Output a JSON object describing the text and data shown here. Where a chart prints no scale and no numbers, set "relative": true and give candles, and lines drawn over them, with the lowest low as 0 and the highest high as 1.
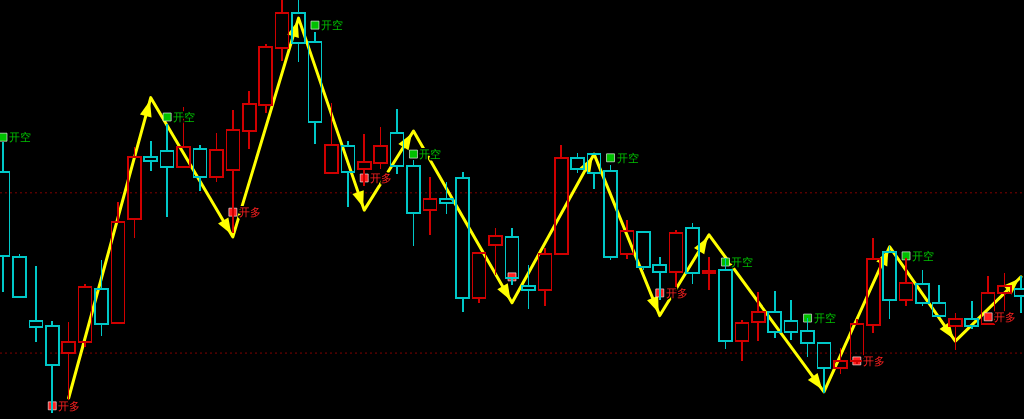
{
  "chart_data": {
    "type": "candlestick",
    "relative": true,
    "categories": [
      null,
      null,
      null,
      null,
      null,
      null,
      null,
      null,
      null,
      null,
      null,
      null,
      null,
      null,
      null,
      null,
      null,
      null,
      null,
      null,
      null,
      null,
      null,
      null,
      null,
      null,
      null,
      null,
      null,
      null,
      null,
      null,
      null,
      null,
      null,
      null,
      null,
      null,
      null,
      null,
      null,
      null,
      null,
      null,
      null,
      null,
      null,
      null,
      null,
      null,
      null,
      null,
      null,
      null,
      null,
      null,
      null,
      null,
      null,
      null,
      null,
      null,
      null
    ],
    "ohlc": [
      [
        0.583,
        0.653,
        0.294,
        0.379
      ],
      [
        0.376,
        0.381,
        0.279,
        0.279
      ],
      [
        0.221,
        0.352,
        0.172,
        0.206
      ],
      [
        0.209,
        0.218,
        0,
        0.114
      ],
      [
        0.143,
        0.216,
        0.019,
        0.17
      ],
      [
        0.17,
        0.308,
        0.16,
        0.303
      ],
      [
        0.299,
        0.367,
        0.187,
        0.214
      ],
      [
        0.216,
        0.507,
        0.216,
        0.461
      ],
      [
        0.468,
        0.641,
        0.425,
        0.619
      ],
      [
        0.619,
        0.655,
        0.587,
        0.609
      ],
      [
        0.633,
        0.697,
        0.476,
        0.595
      ],
      [
        0.595,
        0.738,
        0.595,
        0.643
      ],
      [
        0.638,
        0.646,
        0.539,
        0.57
      ],
      [
        0.57,
        0.675,
        0.561,
        0.636
      ],
      [
        0.587,
        0.731,
        0.437,
        0.684
      ],
      [
        0.682,
        0.777,
        0.641,
        0.748
      ],
      [
        0.745,
        0.891,
        0.728,
        0.886
      ],
      [
        0.883,
        1,
        0.854,
        0.968
      ],
      [
        0.968,
        1,
        0.852,
        0.896
      ],
      [
        0.898,
        0.92,
        0.653,
        0.704
      ],
      [
        0.58,
        0.748,
        0.58,
        0.648
      ],
      [
        0.646,
        0.655,
        0.5,
        0.583
      ],
      [
        0.59,
        0.672,
        0.551,
        0.607
      ],
      [
        0.604,
        0.689,
        0.592,
        0.646
      ],
      [
        0.677,
        0.733,
        0.58,
        0.597
      ],
      [
        0.597,
        0.609,
        0.405,
        0.483
      ],
      [
        0.49,
        0.568,
        0.432,
        0.517
      ],
      [
        0.517,
        0.556,
        0.483,
        0.507
      ],
      [
        0.568,
        0.58,
        0.245,
        0.277
      ],
      [
        0.277,
        0.386,
        0.267,
        0.386
      ],
      [
        0.405,
        0.444,
        0.335,
        0.427
      ],
      [
        0.425,
        0.444,
        0.311,
        0.325
      ],
      [
        0.306,
        0.354,
        0.252,
        0.296
      ],
      [
        0.296,
        0.396,
        0.26,
        0.383
      ],
      [
        0.383,
        0.646,
        0.383,
        0.617
      ],
      [
        0.617,
        0.626,
        0.583,
        0.59
      ],
      [
        0.626,
        0.626,
        0.544,
        0.58
      ],
      [
        0.585,
        0.597,
        0.371,
        0.376
      ],
      [
        0.383,
        0.464,
        0.374,
        0.439
      ],
      [
        0.437,
        0.437,
        0.347,
        0.352
      ],
      [
        0.357,
        0.374,
        0.274,
        0.34
      ],
      [
        0.34,
        0.439,
        0.294,
        0.434
      ],
      [
        0.447,
        0.456,
        0.313,
        0.337
      ],
      [
        0.337,
        0.374,
        0.299,
        0.342
      ],
      [
        0.345,
        0.371,
        0.155,
        0.172
      ],
      [
        0.172,
        0.221,
        0.126,
        0.216
      ],
      [
        0.218,
        0.289,
        0.175,
        0.243
      ],
      [
        0.243,
        0.291,
        0.182,
        0.194
      ],
      [
        0.221,
        0.269,
        0.177,
        0.194
      ],
      [
        0.197,
        0.226,
        0.136,
        0.167
      ],
      [
        0.167,
        0.167,
        0.049,
        0.107
      ],
      [
        0.107,
        0.153,
        0.095,
        0.124
      ],
      [
        0.124,
        0.223,
        0.119,
        0.214
      ],
      [
        0.211,
        0.42,
        0.194,
        0.371
      ],
      [
        0.388,
        0.4,
        0.228,
        0.272
      ],
      [
        0.272,
        0.371,
        0.26,
        0.313
      ],
      [
        0.311,
        0.342,
        0.26,
        0.265
      ],
      [
        0.265,
        0.306,
        0.233,
        0.233
      ],
      [
        0.209,
        0.238,
        0.153,
        0.226
      ],
      [
        0.226,
        0.267,
        0.204,
        0.209
      ],
      [
        0.214,
        0.328,
        0.214,
        0.289
      ],
      [
        0.289,
        0.335,
        0.245,
        0.306
      ],
      [
        0.299,
        0.328,
        0.243,
        0.282
      ]
    ],
    "colors": [
      "#00c8c8",
      "#00c8c8",
      "#00c8c8",
      "#00c8c8",
      "#d00000",
      "#d00000",
      "#00c8c8",
      "#d00000",
      "#d00000",
      "#00c8c8",
      "#00c8c8",
      "#d00000",
      "#00c8c8",
      "#d00000",
      "#d00000",
      "#d00000",
      "#d00000",
      "#d00000",
      "#00c8c8",
      "#00c8c8",
      "#d00000",
      "#00c8c8",
      "#d00000",
      "#d00000",
      "#00c8c8",
      "#00c8c8",
      "#d00000",
      "#00c8c8",
      "#00c8c8",
      "#d00000",
      "#d00000",
      "#00c8c8",
      "#00c8c8",
      "#d00000",
      "#d00000",
      "#00c8c8",
      "#00c8c8",
      "#00c8c8",
      "#d00000",
      "#00c8c8",
      "#00c8c8",
      "#d00000",
      "#00c8c8",
      "#d00000",
      "#00c8c8",
      "#d00000",
      "#d00000",
      "#00c8c8",
      "#00c8c8",
      "#00c8c8",
      "#00c8c8",
      "#d00000",
      "#d00000",
      "#d00000",
      "#00c8c8",
      "#d00000",
      "#00c8c8",
      "#00c8c8",
      "#d00000",
      "#00c8c8",
      "#d00000",
      "#d00000",
      "#00c8c8"
    ],
    "series": [
      {
        "type": "line",
        "color": "#ffff00",
        "values": [
          null,
          null,
          null,
          null,
          0.034,
          null,
          null,
          null,
          null,
          0.763,
          null,
          null,
          null,
          null,
          0.425,
          null,
          null,
          null,
          0.956,
          null,
          null,
          null,
          0.49,
          null,
          null,
          0.682,
          null,
          null,
          null,
          null,
          null,
          0.265,
          null,
          null,
          null,
          null,
          0.626,
          null,
          null,
          null,
          0.234,
          null,
          null,
          0.43,
          null,
          null,
          null,
          null,
          null,
          null,
          0.049,
          null,
          null,
          null,
          0.401,
          null,
          null,
          null,
          0.172,
          null,
          null,
          null,
          0.328
        ]
      },
      {
        "type": "scatter",
        "name": "开多",
        "color": "#ff2020",
        "marker": "square",
        "values": [
          null,
          null,
          null,
          0.015,
          null,
          null,
          null,
          null,
          null,
          null,
          null,
          null,
          null,
          null,
          0.485,
          null,
          null,
          null,
          null,
          null,
          null,
          null,
          0.568,
          null,
          null,
          null,
          null,
          null,
          null,
          null,
          null,
          null,
          null,
          null,
          null,
          null,
          null,
          null,
          null,
          null,
          0.289,
          null,
          null,
          null,
          null,
          null,
          null,
          null,
          null,
          null,
          null,
          null,
          0.124,
          null,
          null,
          null,
          null,
          null,
          null,
          null,
          0.231,
          null,
          null
        ]
      },
      {
        "type": "scatter",
        "color": "#ff2020",
        "marker": "square",
        "values": [
          null,
          null,
          null,
          null,
          null,
          null,
          null,
          null,
          null,
          null,
          null,
          null,
          null,
          null,
          null,
          null,
          null,
          null,
          null,
          null,
          null,
          null,
          null,
          null,
          null,
          null,
          null,
          null,
          null,
          null,
          null,
          0.328,
          null,
          null,
          null,
          null,
          null,
          null,
          null,
          null,
          null,
          null,
          null,
          null,
          null,
          null,
          null,
          null,
          null,
          null,
          null,
          null,
          null,
          null,
          null,
          null,
          null,
          null,
          null,
          null,
          null,
          null,
          null
        ]
      },
      {
        "type": "scatter",
        "name": "开空",
        "color": "#00c000",
        "marker": "square",
        "values": [
          0.667,
          null,
          null,
          null,
          null,
          null,
          null,
          null,
          null,
          null,
          0.716,
          null,
          null,
          null,
          null,
          null,
          null,
          null,
          null,
          0.939,
          null,
          null,
          null,
          null,
          null,
          0.626,
          null,
          null,
          null,
          null,
          null,
          null,
          null,
          null,
          null,
          null,
          null,
          0.617,
          null,
          null,
          null,
          null,
          null,
          null,
          0.364,
          null,
          null,
          null,
          null,
          0.228,
          null,
          null,
          null,
          null,
          null,
          0.379,
          null,
          null,
          null,
          null,
          null,
          null,
          null
        ]
      }
    ],
    "ref_lines": [
      {
        "axis": "y",
        "value": 0.532,
        "color": "#800000",
        "line_style": "dotted"
      },
      {
        "axis": "y",
        "value": 0.143,
        "color": "#800000",
        "line_style": "dotted"
      }
    ]
  }
}
